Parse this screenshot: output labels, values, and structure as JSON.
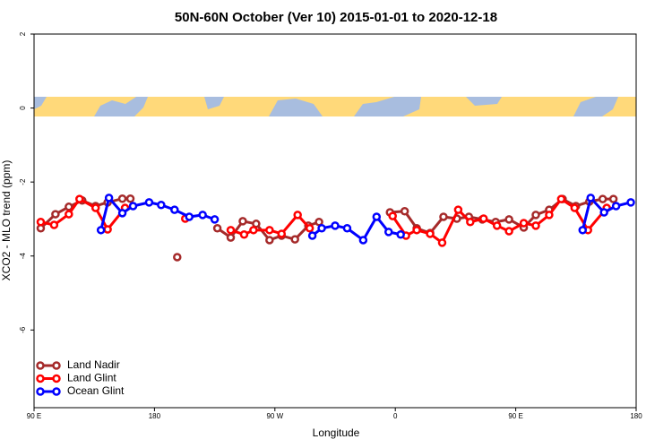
{
  "chart_data": {
    "type": "line",
    "title": "50N-60N October (Ver 10)   2015-01-01 to 2020-12-18",
    "x_label": "Longitude",
    "y_label": "XCO2 - MLO trend (ppm)",
    "xlim": [
      90,
      540
    ],
    "ylim": [
      -8.1,
      2
    ],
    "xticks": [
      {
        "value": 90,
        "label": "90 E"
      },
      180,
      {
        "value": 270,
        "label": "90 W"
      },
      {
        "value": 360,
        "label": "0"
      },
      {
        "value": 450,
        "label": "90 E"
      },
      {
        "value": 540,
        "label": "180"
      }
    ],
    "yticks": [
      2,
      0,
      -2,
      -4,
      -6
    ],
    "legend": "bottom-left",
    "series": [
      {
        "name": "Land Nadir",
        "color": "#a52a2a",
        "x": [
          95,
          106,
          116,
          126,
          136,
          145,
          156,
          162,
          180,
          197,
          212,
          227,
          237,
          246,
          256,
          266,
          275,
          285,
          295,
          303,
          330,
          356,
          367,
          376,
          386,
          396,
          406,
          415,
          425,
          435,
          445,
          456,
          465,
          475,
          485,
          495,
          505,
          515,
          523
        ],
        "values": [
          -3.25,
          -2.87,
          -2.67,
          -2.5,
          -2.65,
          -2.55,
          -2.45,
          -2.45,
          null,
          -4.03,
          null,
          -3.25,
          -3.5,
          -3.06,
          -3.13,
          -3.57,
          -3.45,
          -3.55,
          -3.18,
          -3.08,
          null,
          -2.82,
          -2.79,
          -3.25,
          -3.38,
          -2.94,
          -2.99,
          -2.94,
          -3.01,
          -3.08,
          -3.01,
          -3.23,
          -2.89,
          -2.75,
          -2.46,
          -2.65,
          -2.53,
          -2.46,
          -2.46
        ]
      },
      {
        "name": "Land Glint",
        "color": "#ff0000",
        "x": [
          95,
          105,
          116,
          124,
          136,
          145,
          158,
          180,
          203,
          220,
          237,
          247,
          254,
          266,
          275,
          287,
          296,
          327,
          358,
          368,
          376,
          386,
          395,
          407,
          416,
          426,
          436,
          445,
          456,
          465,
          475,
          484,
          494,
          504,
          518
        ],
        "values": [
          -3.08,
          -3.16,
          -2.87,
          -2.46,
          -2.7,
          -3.28,
          -2.7,
          null,
          -2.99,
          null,
          -3.3,
          -3.42,
          -3.3,
          -3.3,
          -3.4,
          -2.89,
          -3.25,
          null,
          -2.92,
          -3.45,
          -3.3,
          -3.4,
          -3.64,
          -2.75,
          -3.08,
          -2.99,
          -3.18,
          -3.33,
          -3.11,
          -3.18,
          -2.89,
          -2.46,
          -2.7,
          -3.3,
          -2.7
        ]
      },
      {
        "name": "Ocean Glint",
        "color": "#0000ff",
        "x": [
          140,
          146,
          156,
          164,
          176,
          185,
          195,
          206,
          216,
          225,
          260,
          298,
          305,
          315,
          324,
          336,
          346,
          355,
          364,
          430,
          500,
          506,
          516,
          525,
          536
        ],
        "values": [
          -3.3,
          -2.43,
          -2.84,
          -2.65,
          -2.55,
          -2.62,
          -2.75,
          -2.94,
          -2.89,
          -3.01,
          null,
          -3.45,
          -3.25,
          -3.18,
          -3.25,
          -3.57,
          -2.94,
          -3.35,
          -3.42,
          null,
          -3.3,
          -2.43,
          -2.82,
          -2.65,
          -2.55
        ]
      }
    ]
  }
}
